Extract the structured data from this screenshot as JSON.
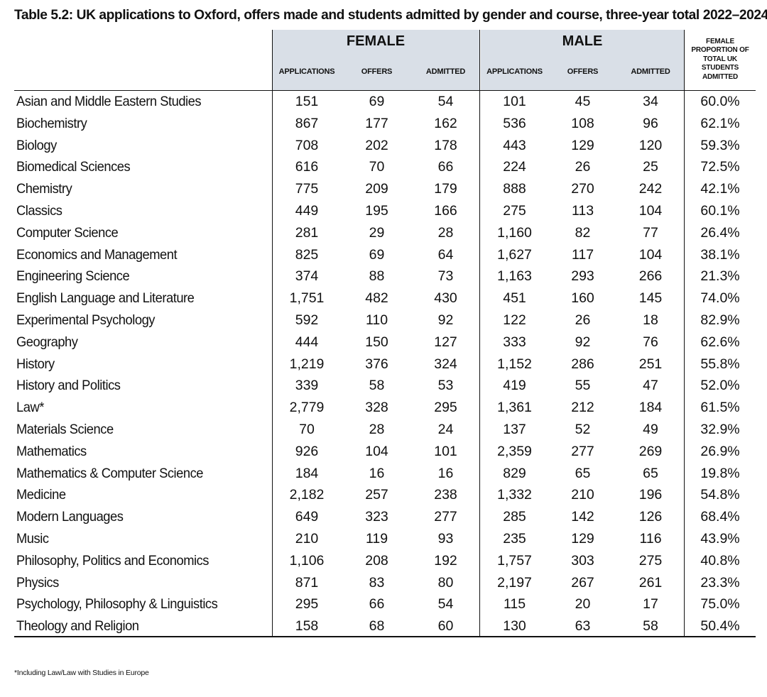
{
  "title": "Table 5.2: UK applications to Oxford, offers made and students admitted by gender and course, three-year total 2022–2024",
  "groups": {
    "female": "FEMALE",
    "male": "MALE"
  },
  "columns": {
    "f_app": "APPLICATIONS",
    "f_off": "OFFERS",
    "f_adm": "ADMITTED",
    "m_app": "APPLICATIONS",
    "m_off": "OFFERS",
    "m_adm": "ADMITTED",
    "prop": "FEMALE PROPORTION OF TOTAL UK STUDENTS ADMITTED"
  },
  "rows": [
    [
      "Asian and Middle Eastern Studies",
      "151",
      "69",
      "54",
      "101",
      "45",
      "34",
      "60.0%"
    ],
    [
      "Biochemistry",
      "867",
      "177",
      "162",
      "536",
      "108",
      "96",
      "62.1%"
    ],
    [
      "Biology",
      "708",
      "202",
      "178",
      "443",
      "129",
      "120",
      "59.3%"
    ],
    [
      "Biomedical Sciences",
      "616",
      "70",
      "66",
      "224",
      "26",
      "25",
      "72.5%"
    ],
    [
      "Chemistry",
      "775",
      "209",
      "179",
      "888",
      "270",
      "242",
      "42.1%"
    ],
    [
      "Classics",
      "449",
      "195",
      "166",
      "275",
      "113",
      "104",
      "60.1%"
    ],
    [
      "Computer Science",
      "281",
      "29",
      "28",
      "1,160",
      "82",
      "77",
      "26.4%"
    ],
    [
      "Economics and Management",
      "825",
      "69",
      "64",
      "1,627",
      "117",
      "104",
      "38.1%"
    ],
    [
      "Engineering Science",
      "374",
      "88",
      "73",
      "1,163",
      "293",
      "266",
      "21.3%"
    ],
    [
      "English Language and Literature",
      "1,751",
      "482",
      "430",
      "451",
      "160",
      "145",
      "74.0%"
    ],
    [
      "Experimental Psychology",
      "592",
      "110",
      "92",
      "122",
      "26",
      "18",
      "82.9%"
    ],
    [
      "Geography",
      "444",
      "150",
      "127",
      "333",
      "92",
      "76",
      "62.6%"
    ],
    [
      "History",
      "1,219",
      "376",
      "324",
      "1,152",
      "286",
      "251",
      "55.8%"
    ],
    [
      "History and Politics",
      "339",
      "58",
      "53",
      "419",
      "55",
      "47",
      "52.0%"
    ],
    [
      "Law*",
      "2,779",
      "328",
      "295",
      "1,361",
      "212",
      "184",
      "61.5%"
    ],
    [
      "Materials Science",
      "70",
      "28",
      "24",
      "137",
      "52",
      "49",
      "32.9%"
    ],
    [
      "Mathematics",
      "926",
      "104",
      "101",
      "2,359",
      "277",
      "269",
      "26.9%"
    ],
    [
      "Mathematics & Computer Science",
      "184",
      "16",
      "16",
      "829",
      "65",
      "65",
      "19.8%"
    ],
    [
      "Medicine",
      "2,182",
      "257",
      "238",
      "1,332",
      "210",
      "196",
      "54.8%"
    ],
    [
      "Modern Languages",
      "649",
      "323",
      "277",
      "285",
      "142",
      "126",
      "68.4%"
    ],
    [
      "Music",
      "210",
      "119",
      "93",
      "235",
      "129",
      "116",
      "43.9%"
    ],
    [
      "Philosophy, Politics and Economics",
      "1,106",
      "208",
      "192",
      "1,757",
      "303",
      "275",
      "40.8%"
    ],
    [
      "Physics",
      "871",
      "83",
      "80",
      "2,197",
      "267",
      "261",
      "23.3%"
    ],
    [
      "Psychology, Philosophy & Linguistics",
      "295",
      "66",
      "54",
      "115",
      "20",
      "17",
      "75.0%"
    ],
    [
      "Theology and Religion",
      "158",
      "68",
      "60",
      "130",
      "63",
      "58",
      "50.4%"
    ]
  ],
  "footnote": "*Including Law/Law with Studies in Europe",
  "colors": {
    "header_bg": "#d9dfe7",
    "text": "#111111",
    "rules": "#111111"
  }
}
